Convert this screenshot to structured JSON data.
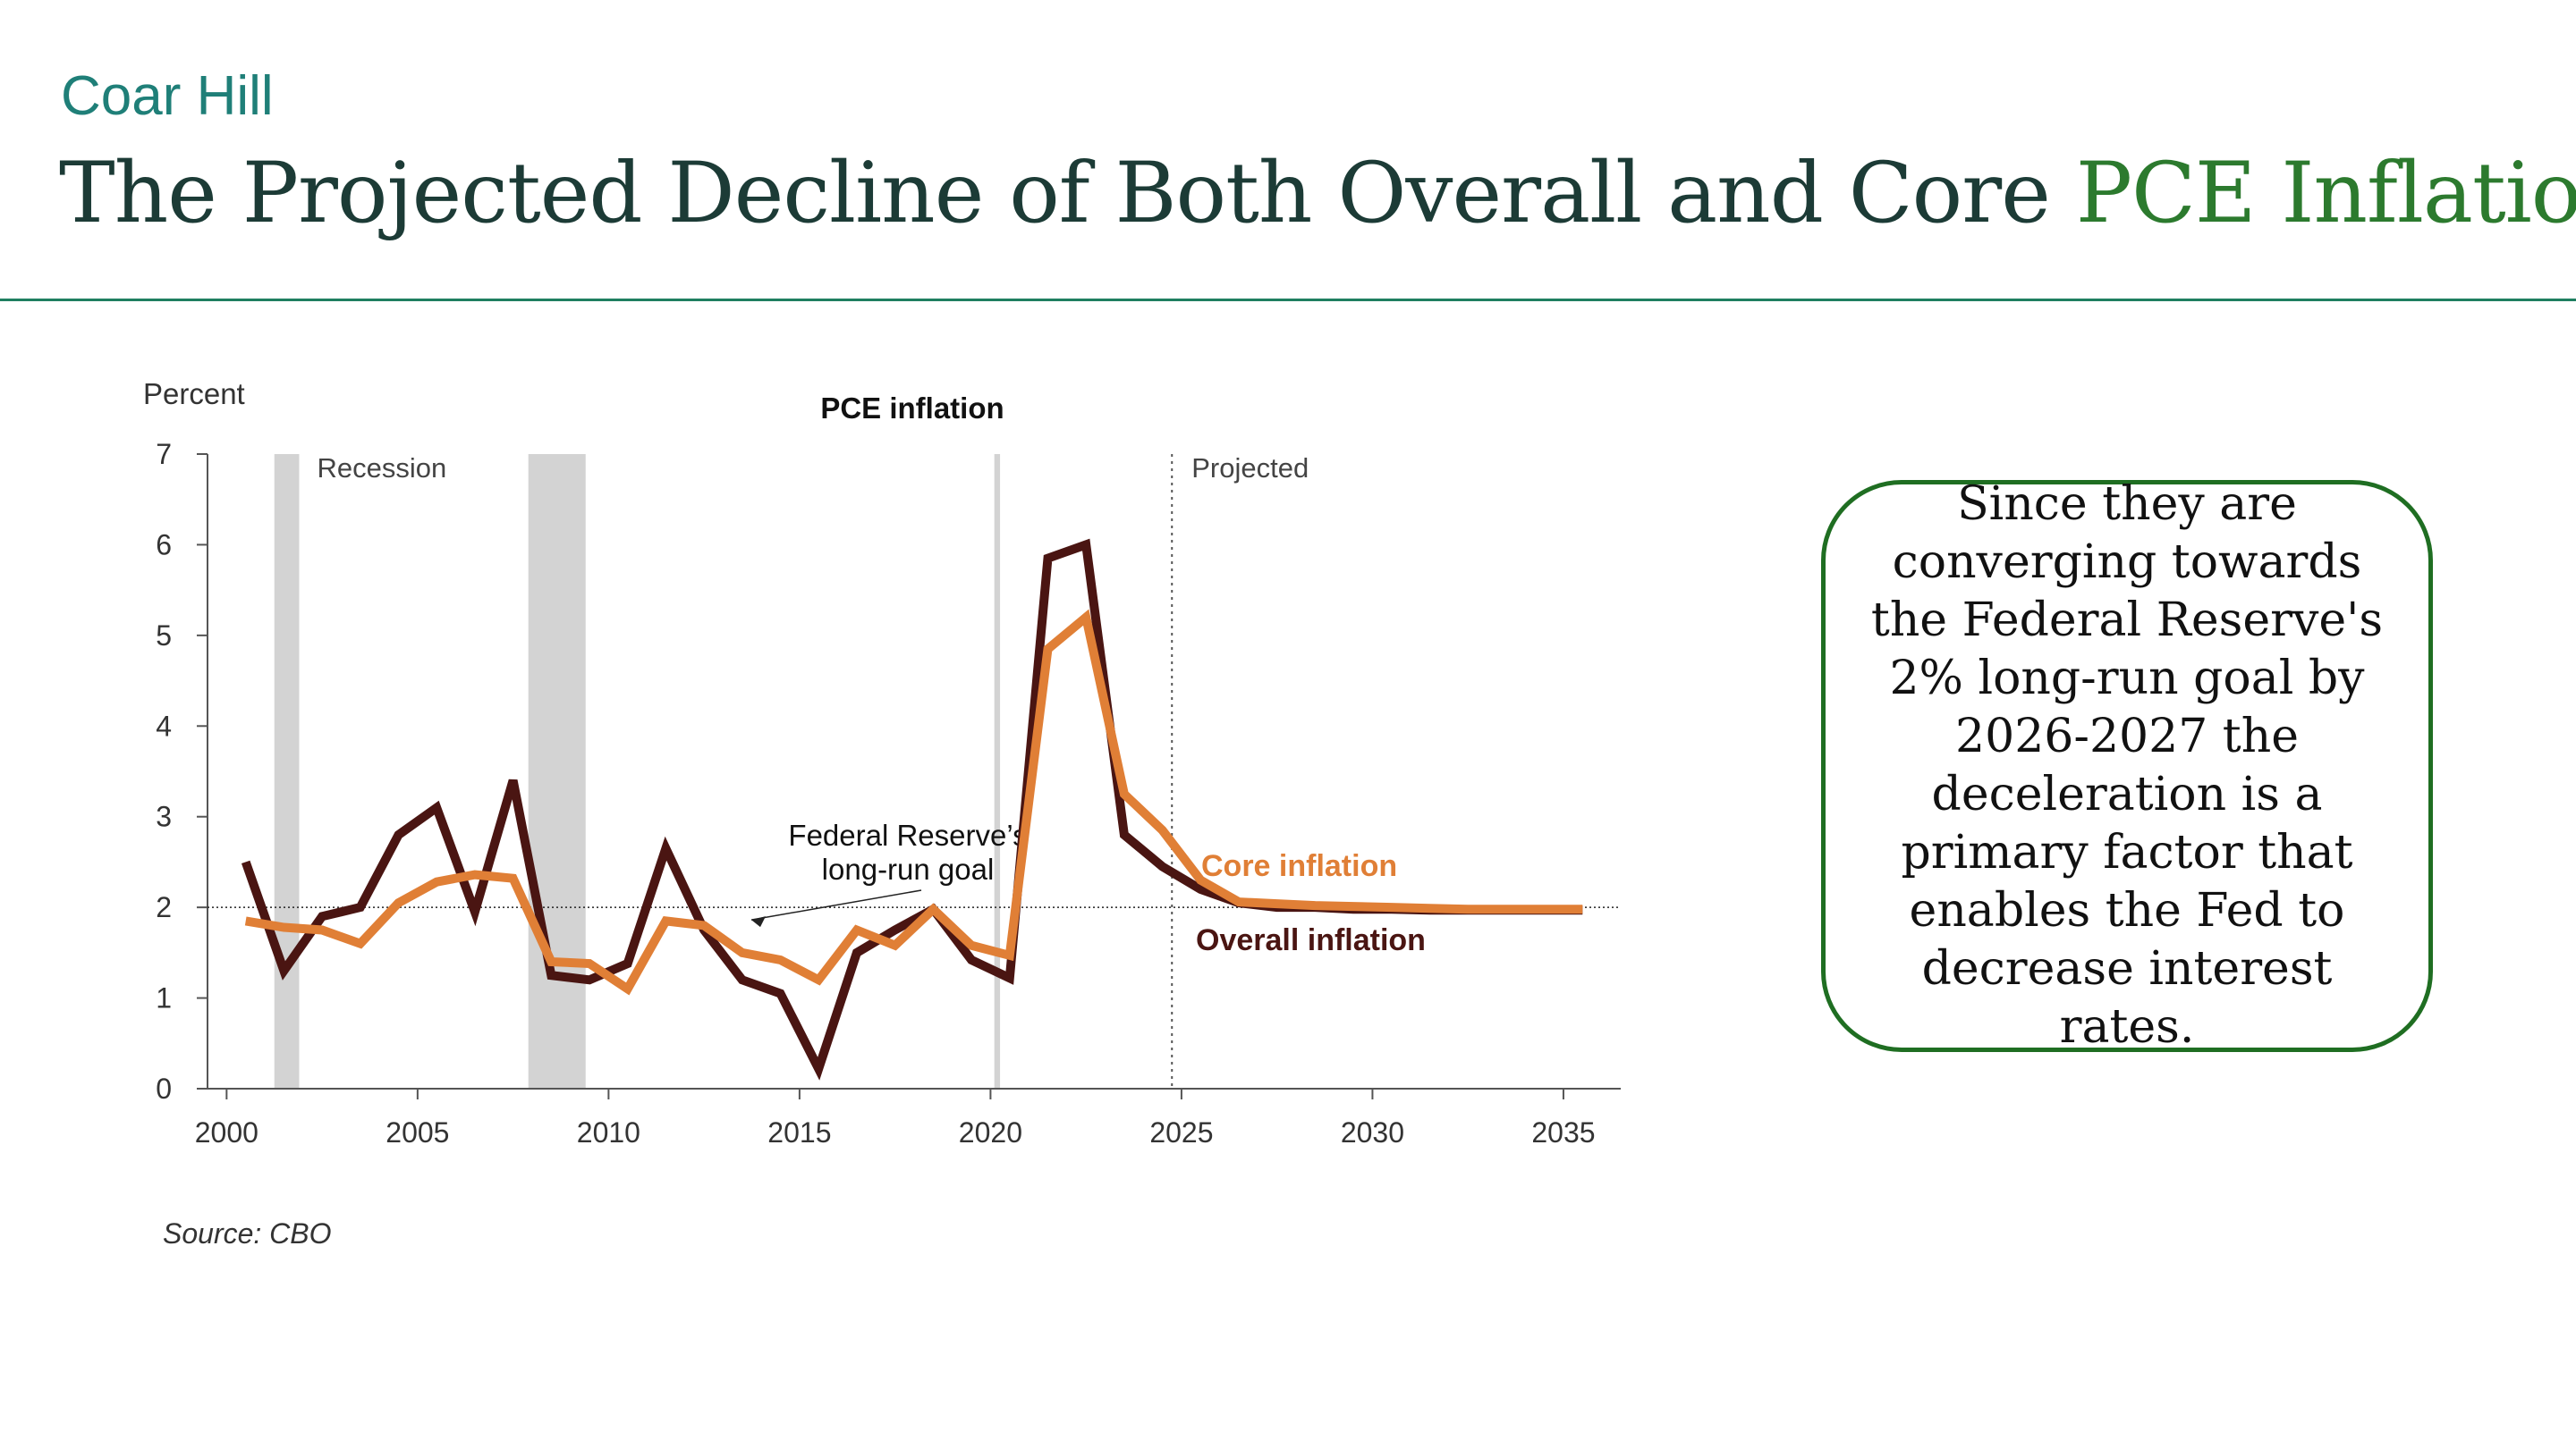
{
  "brand": "Coar Hill",
  "title": {
    "main": "The Projected Decline of Both Overall and Core ",
    "accent": "PCE Inflation"
  },
  "source": "Source: CBO",
  "callout": "Since they are converging towards the Federal Reserve's 2% long-run goal by 2026-2027 the deceleration is a primary factor that enables the Fed to decrease interest rates.",
  "colors": {
    "brand": "#1f7f78",
    "title": "#1c3b36",
    "accent": "#2c7a2e",
    "overall": "#4a1512",
    "core": "#e07f36",
    "recession": "#d3d3d3"
  },
  "chart_data": {
    "type": "line",
    "title": "PCE inflation",
    "ylabel": "Percent",
    "xlabel": "",
    "xlim": [
      1999.5,
      2036.5
    ],
    "ylim": [
      0,
      7
    ],
    "x_ticks": [
      2000,
      2005,
      2010,
      2015,
      2020,
      2025,
      2030,
      2035
    ],
    "y_ticks": [
      0,
      1,
      2,
      3,
      4,
      5,
      6,
      7
    ],
    "grid": false,
    "recessions": [
      {
        "start": 2001.25,
        "end": 2001.9
      },
      {
        "start": 2007.9,
        "end": 2009.4
      },
      {
        "start": 2020.1,
        "end": 2020.25
      }
    ],
    "recession_label": "Recession",
    "projection_start": 2024.75,
    "projected_label": "Projected",
    "reference_line": {
      "y": 2,
      "label": "Federal Reserve’s long-run goal"
    },
    "series": [
      {
        "name": "Overall inflation",
        "color": "#4a1512",
        "x": [
          2000.5,
          2001.5,
          2002.5,
          2003.5,
          2004.5,
          2005.5,
          2006.5,
          2007.5,
          2008.5,
          2009.5,
          2010.5,
          2011.5,
          2012.5,
          2013.5,
          2014.5,
          2015.5,
          2016.5,
          2017.5,
          2018.5,
          2019.5,
          2020.5,
          2021.5,
          2022.5,
          2023.5,
          2024.5,
          2025.5,
          2026.5,
          2027.5,
          2028.5,
          2029.5,
          2030.5,
          2031.5,
          2032.5,
          2033.5,
          2034.5,
          2035.5
        ],
        "values": [
          2.5,
          1.3,
          1.9,
          2.0,
          2.8,
          3.1,
          1.95,
          3.4,
          1.25,
          1.2,
          1.38,
          2.65,
          1.75,
          1.2,
          1.05,
          0.22,
          1.5,
          1.75,
          1.98,
          1.42,
          1.22,
          5.85,
          6.0,
          2.8,
          2.45,
          2.2,
          2.05,
          2.0,
          2.0,
          1.98,
          1.98,
          1.97,
          1.97,
          1.97,
          1.97,
          1.97
        ]
      },
      {
        "name": "Core inflation",
        "color": "#e07f36",
        "x": [
          2000.5,
          2001.5,
          2002.5,
          2003.5,
          2004.5,
          2005.5,
          2006.5,
          2007.5,
          2008.5,
          2009.5,
          2010.5,
          2011.5,
          2012.5,
          2013.5,
          2014.5,
          2015.5,
          2016.5,
          2017.5,
          2018.5,
          2019.5,
          2020.5,
          2021.5,
          2022.5,
          2023.5,
          2024.5,
          2025.5,
          2026.5,
          2027.5,
          2028.5,
          2029.5,
          2030.5,
          2031.5,
          2032.5,
          2033.5,
          2034.5,
          2035.5
        ],
        "values": [
          1.85,
          1.78,
          1.75,
          1.6,
          2.05,
          2.28,
          2.36,
          2.32,
          1.4,
          1.38,
          1.1,
          1.85,
          1.8,
          1.5,
          1.42,
          1.2,
          1.75,
          1.58,
          1.98,
          1.58,
          1.47,
          4.85,
          5.2,
          3.25,
          2.85,
          2.3,
          2.06,
          2.04,
          2.02,
          2.01,
          2.0,
          1.99,
          1.98,
          1.98,
          1.98,
          1.98
        ]
      }
    ]
  }
}
